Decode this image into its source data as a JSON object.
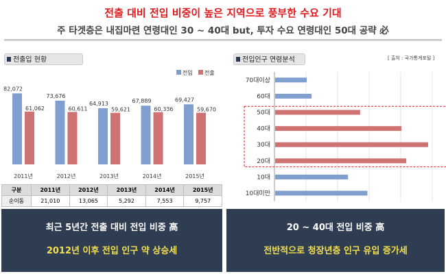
{
  "header": {
    "title": "전출 대비 전입 비중이 높은 지역으로 풍부한 수요 기대",
    "subtitle": "주 타겟층은 내집마련 연령대인 30 ~ 40대 but, 투자 수요 연령대인 50대 공략 必"
  },
  "left_panel": {
    "title": "전출입 현황",
    "summary_line1": "최근 5년간 전출 대비 전입 비중 高",
    "summary_line2": "2012년 이후 전입 인구 약 상승세"
  },
  "right_panel": {
    "title": "전입인구 연령분석",
    "source": "[ 출처 : 국가통계포털 ]",
    "summary_line1": "20 ~ 40대 전입 비중 高",
    "summary_line2": "전반적으로 청장년층 인구 유입 증가세"
  },
  "table": {
    "header_label": "구분",
    "row_label": "순이동",
    "columns": [
      "2011년",
      "2012년",
      "2013년",
      "2014년",
      "2015년"
    ],
    "values": [
      "21,010",
      "13,065",
      "5,292",
      "7,553",
      "9,757"
    ]
  },
  "colors": {
    "inflow": "#7f9fcf",
    "outflow": "#cf7272",
    "highlight": "#e0191d",
    "box_bg": "#2f3d52",
    "box_accent": "#f4e04d"
  },
  "chart_data": [
    {
      "type": "bar",
      "categories": [
        "2011년",
        "2012년",
        "2013년",
        "2014년",
        "2015년"
      ],
      "series": [
        {
          "name": "전입",
          "values": [
            82072,
            73676,
            64913,
            67889,
            69427
          ],
          "labels": [
            "82,072",
            "73,676",
            "64,913",
            "67,889",
            "69,427"
          ]
        },
        {
          "name": "전출",
          "values": [
            61062,
            60611,
            59621,
            60336,
            59670
          ],
          "labels": [
            "61,062",
            "60,611",
            "59,621",
            "60,336",
            "59,670"
          ]
        }
      ],
      "ylim": [
        0,
        95000
      ],
      "legend": "top-right",
      "grid": false
    },
    {
      "type": "bar",
      "orientation": "horizontal",
      "categories": [
        "70대이상",
        "60대",
        "50대",
        "40대",
        "30대",
        "20대",
        "10대",
        "10대미만"
      ],
      "values": [
        13,
        15,
        35,
        52,
        63,
        54,
        30,
        38
      ],
      "xlim": [
        0,
        65
      ],
      "highlighted": [
        "50대",
        "40대",
        "30대",
        "20대"
      ],
      "grid": true
    }
  ]
}
